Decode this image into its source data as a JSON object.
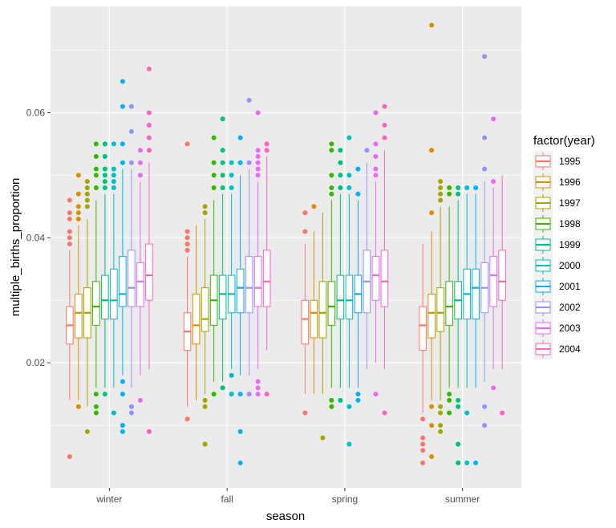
{
  "chart_data": {
    "type": "boxplot",
    "xlabel": "season",
    "ylabel": "multiple_births_proportion",
    "ylim": [
      0.0,
      0.077
    ],
    "yticks": [
      0.02,
      0.04,
      0.06
    ],
    "ytick_labels": [
      "0.02",
      "0.04",
      "0.06"
    ],
    "grid": true,
    "legend": {
      "title": "factor(year)",
      "position": "right",
      "entries": [
        "1995",
        "1996",
        "1997",
        "1998",
        "1999",
        "2000",
        "2001",
        "2002",
        "2003",
        "2004"
      ]
    },
    "categories": [
      "winter",
      "fall",
      "spring",
      "summer"
    ],
    "series": [
      {
        "name": "1995",
        "color": "#F8766D",
        "boxes": [
          {
            "q1": 0.023,
            "median": 0.026,
            "q3": 0.029,
            "whislo": 0.014,
            "whishi": 0.038,
            "outliers": [
              0.005,
              0.039,
              0.04,
              0.041,
              0.043,
              0.044,
              0.046
            ]
          },
          {
            "q1": 0.022,
            "median": 0.025,
            "q3": 0.028,
            "whislo": 0.013,
            "whishi": 0.037,
            "outliers": [
              0.011,
              0.038,
              0.039,
              0.04,
              0.041,
              0.055
            ]
          },
          {
            "q1": 0.023,
            "median": 0.027,
            "q3": 0.03,
            "whislo": 0.015,
            "whishi": 0.039,
            "outliers": [
              0.012,
              0.041,
              0.044
            ]
          },
          {
            "q1": 0.022,
            "median": 0.026,
            "q3": 0.029,
            "whislo": 0.012,
            "whishi": 0.039,
            "outliers": [
              0.004,
              0.006,
              0.007,
              0.008,
              0.011
            ]
          }
        ]
      },
      {
        "name": "1996",
        "color": "#D89000",
        "boxes": [
          {
            "q1": 0.024,
            "median": 0.028,
            "q3": 0.031,
            "whislo": 0.014,
            "whishi": 0.042,
            "outliers": [
              0.013,
              0.043,
              0.044,
              0.045,
              0.047,
              0.05
            ]
          },
          {
            "q1": 0.023,
            "median": 0.026,
            "q3": 0.031,
            "whislo": 0.014,
            "whishi": 0.042,
            "outliers": []
          },
          {
            "q1": 0.024,
            "median": 0.028,
            "q3": 0.03,
            "whislo": 0.015,
            "whishi": 0.041,
            "outliers": [
              0.045
            ]
          },
          {
            "q1": 0.024,
            "median": 0.028,
            "q3": 0.031,
            "whislo": 0.014,
            "whishi": 0.041,
            "outliers": [
              0.005,
              0.01,
              0.013,
              0.044,
              0.054,
              0.074
            ]
          }
        ]
      },
      {
        "name": "1997",
        "color": "#A3A500",
        "boxes": [
          {
            "q1": 0.024,
            "median": 0.028,
            "q3": 0.032,
            "whislo": 0.013,
            "whishi": 0.043,
            "outliers": [
              0.009,
              0.045,
              0.046,
              0.047,
              0.048,
              0.049
            ]
          },
          {
            "q1": 0.025,
            "median": 0.027,
            "q3": 0.032,
            "whislo": 0.015,
            "whishi": 0.043,
            "outliers": [
              0.007,
              0.013,
              0.014,
              0.044,
              0.045
            ]
          },
          {
            "q1": 0.024,
            "median": 0.028,
            "q3": 0.033,
            "whislo": 0.015,
            "whishi": 0.044,
            "outliers": [
              0.008
            ]
          },
          {
            "q1": 0.025,
            "median": 0.028,
            "q3": 0.032,
            "whislo": 0.014,
            "whishi": 0.045,
            "outliers": [
              0.009,
              0.01,
              0.012,
              0.013,
              0.046,
              0.047,
              0.048,
              0.049
            ]
          }
        ]
      },
      {
        "name": "1998",
        "color": "#39B600",
        "boxes": [
          {
            "q1": 0.026,
            "median": 0.029,
            "q3": 0.033,
            "whislo": 0.016,
            "whishi": 0.046,
            "outliers": [
              0.012,
              0.013,
              0.015,
              0.048,
              0.05,
              0.051,
              0.053,
              0.055
            ]
          },
          {
            "q1": 0.026,
            "median": 0.03,
            "q3": 0.034,
            "whislo": 0.017,
            "whishi": 0.046,
            "outliers": [
              0.015,
              0.048,
              0.05,
              0.052,
              0.056
            ]
          },
          {
            "q1": 0.026,
            "median": 0.029,
            "q3": 0.033,
            "whislo": 0.016,
            "whishi": 0.046,
            "outliers": [
              0.013,
              0.014,
              0.047,
              0.048,
              0.05,
              0.054,
              0.055
            ]
          },
          {
            "q1": 0.026,
            "median": 0.029,
            "q3": 0.033,
            "whislo": 0.016,
            "whishi": 0.045,
            "outliers": [
              0.012,
              0.014,
              0.015,
              0.047,
              0.048
            ]
          }
        ]
      },
      {
        "name": "1999",
        "color": "#00BF7D",
        "boxes": [
          {
            "q1": 0.027,
            "median": 0.03,
            "q3": 0.034,
            "whislo": 0.016,
            "whishi": 0.047,
            "outliers": [
              0.015,
              0.048,
              0.049,
              0.05,
              0.051,
              0.053,
              0.055
            ]
          },
          {
            "q1": 0.027,
            "median": 0.031,
            "q3": 0.034,
            "whislo": 0.017,
            "whishi": 0.047,
            "outliers": [
              0.016,
              0.048,
              0.05,
              0.052,
              0.054,
              0.059
            ]
          },
          {
            "q1": 0.027,
            "median": 0.03,
            "q3": 0.034,
            "whislo": 0.016,
            "whishi": 0.047,
            "outliers": [
              0.014,
              0.048,
              0.05,
              0.052,
              0.054
            ]
          },
          {
            "q1": 0.027,
            "median": 0.03,
            "q3": 0.033,
            "whislo": 0.016,
            "whishi": 0.046,
            "outliers": [
              0.004,
              0.007,
              0.013,
              0.014,
              0.047,
              0.048
            ]
          }
        ]
      },
      {
        "name": "2000",
        "color": "#00BFC4",
        "boxes": [
          {
            "q1": 0.027,
            "median": 0.03,
            "q3": 0.035,
            "whislo": 0.016,
            "whishi": 0.047,
            "outliers": [
              0.012,
              0.048,
              0.049,
              0.05,
              0.051,
              0.055
            ]
          },
          {
            "q1": 0.028,
            "median": 0.031,
            "q3": 0.034,
            "whislo": 0.019,
            "whishi": 0.047,
            "outliers": [
              0.015,
              0.018,
              0.048,
              0.05,
              0.052
            ]
          },
          {
            "q1": 0.027,
            "median": 0.03,
            "q3": 0.034,
            "whislo": 0.016,
            "whishi": 0.047,
            "outliers": [
              0.007,
              0.013,
              0.048,
              0.05,
              0.056
            ]
          },
          {
            "q1": 0.027,
            "median": 0.031,
            "q3": 0.035,
            "whislo": 0.016,
            "whishi": 0.047,
            "outliers": [
              0.004,
              0.012,
              0.048
            ]
          }
        ]
      },
      {
        "name": "2001",
        "color": "#00B0F6",
        "boxes": [
          {
            "q1": 0.029,
            "median": 0.031,
            "q3": 0.037,
            "whislo": 0.018,
            "whishi": 0.051,
            "outliers": [
              0.009,
              0.01,
              0.015,
              0.017,
              0.052,
              0.055,
              0.061,
              0.065
            ]
          },
          {
            "q1": 0.028,
            "median": 0.032,
            "q3": 0.035,
            "whislo": 0.018,
            "whishi": 0.05,
            "outliers": [
              0.004,
              0.009,
              0.015,
              0.052,
              0.056
            ]
          },
          {
            "q1": 0.028,
            "median": 0.031,
            "q3": 0.034,
            "whislo": 0.016,
            "whishi": 0.046,
            "outliers": [
              0.014,
              0.015,
              0.047,
              0.051
            ]
          },
          {
            "q1": 0.027,
            "median": 0.032,
            "q3": 0.035,
            "whislo": 0.016,
            "whishi": 0.047,
            "outliers": [
              0.004,
              0.048
            ]
          }
        ]
      },
      {
        "name": "2002",
        "color": "#9590FF",
        "boxes": [
          {
            "q1": 0.029,
            "median": 0.032,
            "q3": 0.038,
            "whislo": 0.016,
            "whishi": 0.051,
            "outliers": [
              0.012,
              0.013,
              0.052,
              0.057,
              0.061
            ]
          },
          {
            "q1": 0.028,
            "median": 0.032,
            "q3": 0.037,
            "whislo": 0.018,
            "whishi": 0.051,
            "outliers": [
              0.015,
              0.052,
              0.062
            ]
          },
          {
            "q1": 0.028,
            "median": 0.033,
            "q3": 0.038,
            "whislo": 0.019,
            "whishi": 0.052,
            "outliers": [
              0.054
            ]
          },
          {
            "q1": 0.028,
            "median": 0.032,
            "q3": 0.036,
            "whislo": 0.017,
            "whishi": 0.049,
            "outliers": [
              0.01,
              0.013,
              0.051,
              0.056,
              0.069
            ]
          }
        ]
      },
      {
        "name": "2003",
        "color": "#E76BF3",
        "boxes": [
          {
            "q1": 0.029,
            "median": 0.033,
            "q3": 0.036,
            "whislo": 0.018,
            "whishi": 0.049,
            "outliers": [
              0.014,
              0.05,
              0.052,
              0.054
            ]
          },
          {
            "q1": 0.029,
            "median": 0.032,
            "q3": 0.037,
            "whislo": 0.019,
            "whishi": 0.049,
            "outliers": [
              0.015,
              0.016,
              0.017,
              0.05,
              0.051,
              0.052,
              0.053,
              0.054,
              0.06
            ]
          },
          {
            "q1": 0.03,
            "median": 0.034,
            "q3": 0.037,
            "whislo": 0.02,
            "whishi": 0.049,
            "outliers": [
              0.015,
              0.05,
              0.051,
              0.053,
              0.055,
              0.06
            ]
          },
          {
            "q1": 0.029,
            "median": 0.034,
            "q3": 0.037,
            "whislo": 0.019,
            "whishi": 0.048,
            "outliers": [
              0.016,
              0.049,
              0.059
            ]
          }
        ]
      },
      {
        "name": "2004",
        "color": "#FF62BC",
        "boxes": [
          {
            "q1": 0.03,
            "median": 0.034,
            "q3": 0.039,
            "whislo": 0.019,
            "whishi": 0.052,
            "outliers": [
              0.009,
              0.054,
              0.056,
              0.058,
              0.06,
              0.067
            ]
          },
          {
            "q1": 0.029,
            "median": 0.033,
            "q3": 0.038,
            "whislo": 0.022,
            "whishi": 0.053,
            "outliers": [
              0.015,
              0.054,
              0.055
            ]
          },
          {
            "q1": 0.029,
            "median": 0.033,
            "q3": 0.038,
            "whislo": 0.019,
            "whishi": 0.054,
            "outliers": [
              0.012,
              0.056,
              0.058,
              0.061
            ]
          },
          {
            "q1": 0.03,
            "median": 0.033,
            "q3": 0.038,
            "whislo": 0.019,
            "whishi": 0.05,
            "outliers": [
              0.012
            ]
          }
        ]
      }
    ]
  }
}
